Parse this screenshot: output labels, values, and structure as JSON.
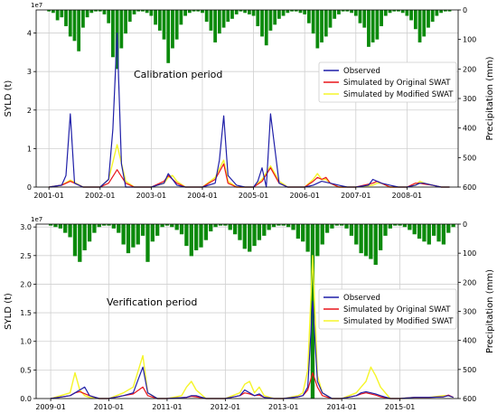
{
  "chart_data": [
    {
      "type": "line",
      "annotation": "Calibration period",
      "ylabel": "SYLD (t)",
      "y_exponent": "1e7",
      "ylim": [
        0,
        4.6
      ],
      "yticks": [
        "0",
        "1",
        "2",
        "3",
        "4"
      ],
      "y2label": "Precipitation (mm)",
      "y2lim": [
        0,
        600
      ],
      "y2ticks": [
        "0",
        "100",
        "200",
        "300",
        "400",
        "500",
        "600"
      ],
      "xlim": [
        2000.75,
        2009.0
      ],
      "xticks": [
        "2001-01",
        "2002-01",
        "2003-01",
        "2004-01",
        "2005-01",
        "2006-01",
        "2007-01",
        "2008-01"
      ],
      "legend": {
        "position": "center-right",
        "items": [
          "Observed",
          "Simulated by Original SWAT",
          "Simulated by Modified SWAT"
        ]
      },
      "colors": {
        "observed": "#1f1fa8",
        "original": "#e8151a",
        "modified": "#f5f52a",
        "precip": "#0b8a0b"
      },
      "precip": {
        "x": [
          2001.0,
          2001.083,
          2001.167,
          2001.25,
          2001.333,
          2001.417,
          2001.5,
          2001.583,
          2001.667,
          2001.75,
          2001.833,
          2001.917,
          2002.0,
          2002.083,
          2002.167,
          2002.25,
          2002.333,
          2002.417,
          2002.5,
          2002.583,
          2002.667,
          2002.75,
          2002.833,
          2002.917,
          2003.0,
          2003.083,
          2003.167,
          2003.25,
          2003.333,
          2003.417,
          2003.5,
          2003.583,
          2003.667,
          2003.75,
          2003.833,
          2003.917,
          2004.0,
          2004.083,
          2004.167,
          2004.25,
          2004.333,
          2004.417,
          2004.5,
          2004.583,
          2004.667,
          2004.75,
          2004.833,
          2004.917,
          2005.0,
          2005.083,
          2005.167,
          2005.25,
          2005.333,
          2005.417,
          2005.5,
          2005.583,
          2005.667,
          2005.75,
          2005.833,
          2005.917,
          2006.0,
          2006.083,
          2006.167,
          2006.25,
          2006.333,
          2006.417,
          2006.5,
          2006.583,
          2006.667,
          2006.75,
          2006.833,
          2006.917,
          2007.0,
          2007.083,
          2007.167,
          2007.25,
          2007.333,
          2007.417,
          2007.5,
          2007.583,
          2007.667,
          2007.75,
          2007.833,
          2007.917,
          2008.0,
          2008.083,
          2008.167,
          2008.25,
          2008.333,
          2008.417,
          2008.5,
          2008.583,
          2008.667,
          2008.75,
          2008.833
        ],
        "values": [
          5,
          10,
          35,
          25,
          55,
          90,
          105,
          140,
          60,
          25,
          10,
          5,
          5,
          15,
          45,
          160,
          200,
          130,
          80,
          40,
          15,
          5,
          5,
          10,
          20,
          50,
          70,
          100,
          180,
          130,
          100,
          50,
          20,
          10,
          5,
          5,
          10,
          40,
          70,
          110,
          80,
          60,
          40,
          30,
          15,
          5,
          10,
          15,
          20,
          55,
          90,
          120,
          70,
          50,
          30,
          20,
          10,
          5,
          5,
          10,
          15,
          45,
          80,
          130,
          110,
          90,
          60,
          30,
          15,
          5,
          5,
          10,
          20,
          45,
          60,
          125,
          110,
          100,
          55,
          20,
          10,
          5,
          5,
          10,
          20,
          35,
          65,
          110,
          90,
          60,
          40,
          20,
          10,
          5,
          5
        ]
      },
      "observed": {
        "x": [
          2001.0,
          2001.25,
          2001.333,
          2001.417,
          2001.5,
          2001.667,
          2002.0,
          2002.167,
          2002.25,
          2002.333,
          2002.417,
          2002.5,
          2002.667,
          2003.0,
          2003.25,
          2003.333,
          2003.5,
          2003.667,
          2004.0,
          2004.25,
          2004.333,
          2004.417,
          2004.5,
          2004.667,
          2004.833,
          2005.0,
          2005.083,
          2005.167,
          2005.25,
          2005.333,
          2005.5,
          2005.667,
          2006.0,
          2006.167,
          2006.333,
          2006.5,
          2006.667,
          2006.833,
          2007.0,
          2007.25,
          2007.333,
          2007.5,
          2007.667,
          2007.833,
          2008.0,
          2008.167,
          2008.25,
          2008.333,
          2008.5,
          2008.667,
          2008.833
        ],
        "values": [
          0,
          0.05,
          0.3,
          1.9,
          0.1,
          0,
          0,
          0.2,
          1.5,
          4.0,
          0.6,
          0,
          0,
          0,
          0.1,
          0.35,
          0.05,
          0,
          0,
          0.1,
          0.7,
          1.85,
          0.3,
          0.05,
          0,
          0,
          0.15,
          0.5,
          0,
          1.9,
          0.1,
          0,
          0,
          0.05,
          0.15,
          0.1,
          0.05,
          0,
          0,
          0.05,
          0.2,
          0.1,
          0.05,
          0,
          0,
          0.05,
          0.1,
          0.1,
          0.05,
          0,
          0
        ]
      },
      "original": {
        "x": [
          2001.0,
          2001.25,
          2001.417,
          2001.5,
          2001.667,
          2002.0,
          2002.167,
          2002.333,
          2002.5,
          2002.667,
          2003.0,
          2003.25,
          2003.333,
          2003.417,
          2003.5,
          2003.667,
          2004.0,
          2004.25,
          2004.417,
          2004.5,
          2004.667,
          2005.0,
          2005.167,
          2005.333,
          2005.5,
          2005.667,
          2006.0,
          2006.167,
          2006.25,
          2006.333,
          2006.417,
          2006.5,
          2006.667,
          2007.0,
          2007.333,
          2007.417,
          2007.5,
          2007.667,
          2008.0,
          2008.167,
          2008.25,
          2008.333,
          2008.5,
          2008.667,
          2008.833
        ],
        "values": [
          0,
          0.05,
          0.15,
          0.1,
          0,
          0,
          0.1,
          0.45,
          0.1,
          0,
          0,
          0.15,
          0.3,
          0.2,
          0.1,
          0,
          0,
          0.2,
          0.6,
          0.1,
          0,
          0,
          0.15,
          0.5,
          0.1,
          0,
          0,
          0.15,
          0.25,
          0.2,
          0.25,
          0.1,
          0,
          0,
          0.1,
          0.15,
          0.1,
          0,
          0,
          0.1,
          0.1,
          0.08,
          0.05,
          0,
          0
        ]
      },
      "modified": {
        "x": [
          2001.0,
          2001.25,
          2001.417,
          2001.5,
          2001.667,
          2002.0,
          2002.167,
          2002.333,
          2002.5,
          2002.667,
          2003.0,
          2003.25,
          2003.333,
          2003.417,
          2003.5,
          2003.667,
          2004.0,
          2004.25,
          2004.417,
          2004.5,
          2004.667,
          2005.0,
          2005.167,
          2005.333,
          2005.5,
          2005.667,
          2006.0,
          2006.167,
          2006.25,
          2006.333,
          2006.417,
          2006.5,
          2006.667,
          2007.0,
          2007.333,
          2007.417,
          2007.5,
          2007.667,
          2008.0,
          2008.167,
          2008.25,
          2008.333,
          2008.5,
          2008.667,
          2008.833
        ],
        "values": [
          0,
          0.05,
          0.18,
          0.12,
          0,
          0,
          0.2,
          1.1,
          0.15,
          0,
          0,
          0.1,
          0.25,
          0.3,
          0.15,
          0,
          0,
          0.25,
          0.7,
          0.15,
          0,
          0,
          0.2,
          0.55,
          0.15,
          0,
          0,
          0.2,
          0.35,
          0.2,
          0.2,
          0.1,
          0,
          0,
          0.05,
          0.1,
          0.1,
          0,
          0,
          0.05,
          0.15,
          0.1,
          0.05,
          0,
          0
        ]
      }
    },
    {
      "type": "line",
      "annotation": "Verification period",
      "ylabel": "SYLD (t)",
      "y_exponent": "1e7",
      "ylim": [
        0,
        3.05
      ],
      "yticks": [
        "0.0",
        "0.5",
        "1.0",
        "1.5",
        "2.0",
        "2.5",
        "3.0"
      ],
      "y2label": "Precipitation (mm)",
      "y2lim": [
        0,
        600
      ],
      "y2ticks": [
        "0",
        "100",
        "200",
        "300",
        "400",
        "500",
        "600"
      ],
      "xlim": [
        2008.75,
        2016.0
      ],
      "xticks": [
        "2009-01",
        "2010-01",
        "2011-01",
        "2012-01",
        "2013-01",
        "2014-01",
        "2015-01"
      ],
      "legend": {
        "position": "center-right",
        "items": [
          "Observed",
          "Simulated by Original SWAT",
          "Simulated by Modified SWAT"
        ]
      },
      "colors": {
        "observed": "#1f1fa8",
        "original": "#e8151a",
        "modified": "#f5f52a",
        "precip": "#0b8a0b"
      },
      "precip": {
        "x": [
          2009.0,
          2009.083,
          2009.167,
          2009.25,
          2009.333,
          2009.417,
          2009.5,
          2009.583,
          2009.667,
          2009.75,
          2009.833,
          2009.917,
          2010.0,
          2010.083,
          2010.167,
          2010.25,
          2010.333,
          2010.417,
          2010.5,
          2010.583,
          2010.667,
          2010.75,
          2010.833,
          2010.917,
          2011.0,
          2011.083,
          2011.167,
          2011.25,
          2011.333,
          2011.417,
          2011.5,
          2011.583,
          2011.667,
          2011.75,
          2011.833,
          2011.917,
          2012.0,
          2012.083,
          2012.167,
          2012.25,
          2012.333,
          2012.417,
          2012.5,
          2012.583,
          2012.667,
          2012.75,
          2012.833,
          2012.917,
          2013.0,
          2013.083,
          2013.167,
          2013.25,
          2013.333,
          2013.417,
          2013.5,
          2013.583,
          2013.667,
          2013.75,
          2013.833,
          2013.917,
          2014.0,
          2014.083,
          2014.167,
          2014.25,
          2014.333,
          2014.417,
          2014.5,
          2014.583,
          2014.667,
          2014.75,
          2014.833,
          2014.917,
          2015.0,
          2015.083,
          2015.167,
          2015.25,
          2015.333,
          2015.417,
          2015.5,
          2015.583,
          2015.667,
          2015.75,
          2015.833,
          2015.917
        ],
        "values": [
          5,
          10,
          15,
          30,
          45,
          110,
          130,
          90,
          60,
          30,
          10,
          5,
          5,
          15,
          30,
          70,
          100,
          80,
          70,
          40,
          130,
          60,
          40,
          10,
          5,
          10,
          20,
          35,
          75,
          110,
          90,
          80,
          55,
          25,
          10,
          5,
          5,
          20,
          35,
          55,
          85,
          95,
          75,
          55,
          40,
          20,
          10,
          5,
          5,
          10,
          20,
          50,
          60,
          95,
          600,
          110,
          70,
          30,
          15,
          5,
          5,
          15,
          40,
          70,
          100,
          110,
          120,
          140,
          90,
          40,
          15,
          5,
          5,
          10,
          20,
          35,
          50,
          60,
          70,
          40,
          60,
          70,
          30,
          10
        ]
      },
      "observed": {
        "x": [
          2009.0,
          2009.333,
          2009.417,
          2009.5,
          2009.583,
          2009.667,
          2009.833,
          2010.0,
          2010.25,
          2010.417,
          2010.583,
          2010.667,
          2010.833,
          2011.0,
          2011.333,
          2011.417,
          2011.5,
          2011.667,
          2012.0,
          2012.25,
          2012.333,
          2012.417,
          2012.5,
          2012.583,
          2012.667,
          2012.833,
          2013.0,
          2013.25,
          2013.333,
          2013.417,
          2013.5,
          2013.583,
          2013.667,
          2013.833,
          2014.0,
          2014.25,
          2014.333,
          2014.417,
          2014.5,
          2014.583,
          2014.667,
          2014.833,
          2015.0,
          2015.25,
          2015.5,
          2015.75,
          2015.833,
          2015.917
        ],
        "values": [
          0,
          0.05,
          0.1,
          0.15,
          0.2,
          0.05,
          0,
          0,
          0.05,
          0.1,
          0.55,
          0.1,
          0,
          0,
          0.02,
          0.05,
          0.05,
          0,
          0,
          0.05,
          0.15,
          0.1,
          0.05,
          0.08,
          0.02,
          0,
          0,
          0.03,
          0.05,
          0.2,
          1.7,
          0.3,
          0.1,
          0,
          0,
          0.05,
          0.1,
          0.12,
          0.1,
          0.08,
          0.05,
          0,
          0,
          0.02,
          0.02,
          0.03,
          0.05,
          0.02
        ]
      },
      "original": {
        "x": [
          2009.0,
          2009.333,
          2009.417,
          2009.5,
          2009.667,
          2009.833,
          2010.0,
          2010.25,
          2010.417,
          2010.583,
          2010.667,
          2010.833,
          2011.0,
          2011.333,
          2011.417,
          2011.5,
          2011.667,
          2012.0,
          2012.25,
          2012.333,
          2012.417,
          2012.5,
          2012.583,
          2012.667,
          2012.833,
          2013.0,
          2013.25,
          2013.333,
          2013.417,
          2013.5,
          2013.583,
          2013.667,
          2013.833,
          2014.0,
          2014.25,
          2014.333,
          2014.417,
          2014.5,
          2014.583,
          2014.667,
          2014.833,
          2015.0,
          2015.25,
          2015.5,
          2015.75,
          2015.833,
          2015.917
        ],
        "values": [
          0,
          0.05,
          0.1,
          0.12,
          0.05,
          0,
          0,
          0.05,
          0.08,
          0.2,
          0.05,
          0,
          0,
          0.02,
          0.04,
          0.03,
          0,
          0,
          0.05,
          0.1,
          0.08,
          0.05,
          0.06,
          0.02,
          0,
          0,
          0.03,
          0.05,
          0.15,
          0.45,
          0.2,
          0.05,
          0,
          0,
          0.05,
          0.08,
          0.1,
          0.08,
          0.06,
          0.03,
          0,
          0,
          0.02,
          0.02,
          0.03,
          0.06,
          0.02
        ]
      },
      "modified": {
        "x": [
          2009.0,
          2009.333,
          2009.417,
          2009.5,
          2009.583,
          2009.667,
          2009.833,
          2010.0,
          2010.25,
          2010.417,
          2010.583,
          2010.667,
          2010.833,
          2011.0,
          2011.25,
          2011.333,
          2011.417,
          2011.5,
          2011.667,
          2012.0,
          2012.25,
          2012.333,
          2012.417,
          2012.5,
          2012.583,
          2012.667,
          2012.833,
          2013.0,
          2013.25,
          2013.333,
          2013.417,
          2013.5,
          2013.583,
          2013.667,
          2013.833,
          2014.0,
          2014.25,
          2014.333,
          2014.417,
          2014.5,
          2014.583,
          2014.667,
          2014.833,
          2015.0,
          2015.25,
          2015.5,
          2015.75,
          2015.833,
          2015.917
        ],
        "values": [
          0,
          0.1,
          0.45,
          0.15,
          0.05,
          0.02,
          0,
          0,
          0.1,
          0.2,
          0.75,
          0.1,
          0,
          0,
          0.05,
          0.2,
          0.3,
          0.15,
          0,
          0,
          0.1,
          0.25,
          0.3,
          0.1,
          0.2,
          0.05,
          0,
          0,
          0.05,
          0.1,
          0.5,
          2.5,
          0.4,
          0.1,
          0,
          0,
          0.1,
          0.2,
          0.3,
          0.55,
          0.4,
          0.2,
          0,
          0,
          0.02,
          0.02,
          0.05,
          0.05,
          0.02
        ]
      }
    }
  ]
}
